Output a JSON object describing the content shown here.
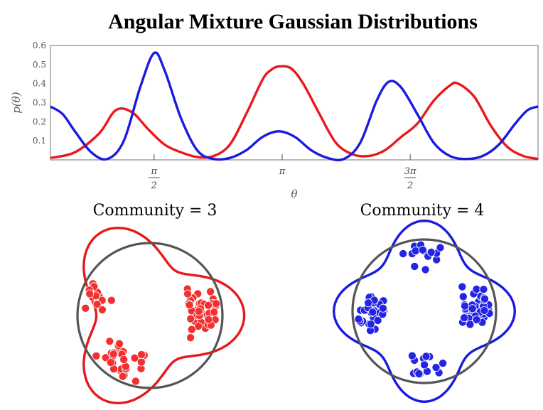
{
  "chart_data": [
    {
      "type": "line",
      "title": "Angular Mixture Gaussian Distributions",
      "xlabel": "θ",
      "ylabel": "p(θ)",
      "xlim": [
        0.3,
        6.28
      ],
      "ylim": [
        0,
        0.6
      ],
      "y_ticks": [
        "0.1",
        "0.2",
        "0.3",
        "0.4",
        "0.5",
        "0.6"
      ],
      "x_ticks": [
        {
          "value": 1.5708,
          "num": "π",
          "den": "2"
        },
        {
          "value": 3.1416,
          "num": "π",
          "den": ""
        },
        {
          "value": 4.7124,
          "num": "3π",
          "den": "2"
        }
      ],
      "grid": false,
      "series": [
        {
          "color": "#e8191c",
          "x": [
            0.3,
            0.6,
            0.9,
            1.1,
            1.3,
            1.5,
            1.7,
            1.9,
            2.1,
            2.3,
            2.5,
            2.7,
            2.9,
            3.0,
            3.1,
            3.25,
            3.4,
            3.6,
            3.8,
            4.0,
            4.2,
            4.4,
            4.6,
            4.8,
            5.0,
            5.2,
            5.3,
            5.5,
            5.7,
            5.9,
            6.1,
            6.28
          ],
          "y": [
            0.01,
            0.04,
            0.14,
            0.26,
            0.25,
            0.16,
            0.08,
            0.04,
            0.015,
            0.02,
            0.08,
            0.24,
            0.42,
            0.47,
            0.49,
            0.48,
            0.4,
            0.24,
            0.09,
            0.03,
            0.02,
            0.05,
            0.12,
            0.19,
            0.31,
            0.39,
            0.4,
            0.33,
            0.18,
            0.07,
            0.02,
            0.005
          ]
        },
        {
          "color": "#1a1ae0",
          "x": [
            0.3,
            0.45,
            0.6,
            0.8,
            1.0,
            1.2,
            1.4,
            1.57,
            1.7,
            1.9,
            2.1,
            2.3,
            2.5,
            2.7,
            2.9,
            3.1,
            3.3,
            3.5,
            3.7,
            3.9,
            4.1,
            4.3,
            4.45,
            4.6,
            4.8,
            5.0,
            5.2,
            5.4,
            5.6,
            5.8,
            6.0,
            6.15,
            6.28
          ],
          "y": [
            0.28,
            0.24,
            0.15,
            0.04,
            0.005,
            0.1,
            0.38,
            0.56,
            0.47,
            0.22,
            0.05,
            0.005,
            0.01,
            0.05,
            0.12,
            0.15,
            0.12,
            0.05,
            0.01,
            0.005,
            0.09,
            0.31,
            0.41,
            0.38,
            0.24,
            0.09,
            0.02,
            0.005,
            0.02,
            0.08,
            0.19,
            0.26,
            0.28
          ]
        }
      ]
    },
    {
      "type": "scatter",
      "title": "Community = 3",
      "color": "#f23030",
      "outline_color": "#e8191c",
      "circle_color": "#555555",
      "clusters": [
        {
          "center_deg": 162,
          "count": 14
        },
        {
          "center_deg": 6,
          "count": 40
        },
        {
          "center_deg": 238,
          "count": 30
        }
      ]
    },
    {
      "type": "scatter",
      "title": "Community = 4",
      "color": "#2424e6",
      "outline_color": "#1a1ae0",
      "circle_color": "#555555",
      "clusters": [
        {
          "center_deg": 90,
          "count": 14
        },
        {
          "center_deg": 0,
          "count": 52
        },
        {
          "center_deg": 270,
          "count": 14
        },
        {
          "center_deg": 180,
          "count": 42
        }
      ]
    }
  ]
}
